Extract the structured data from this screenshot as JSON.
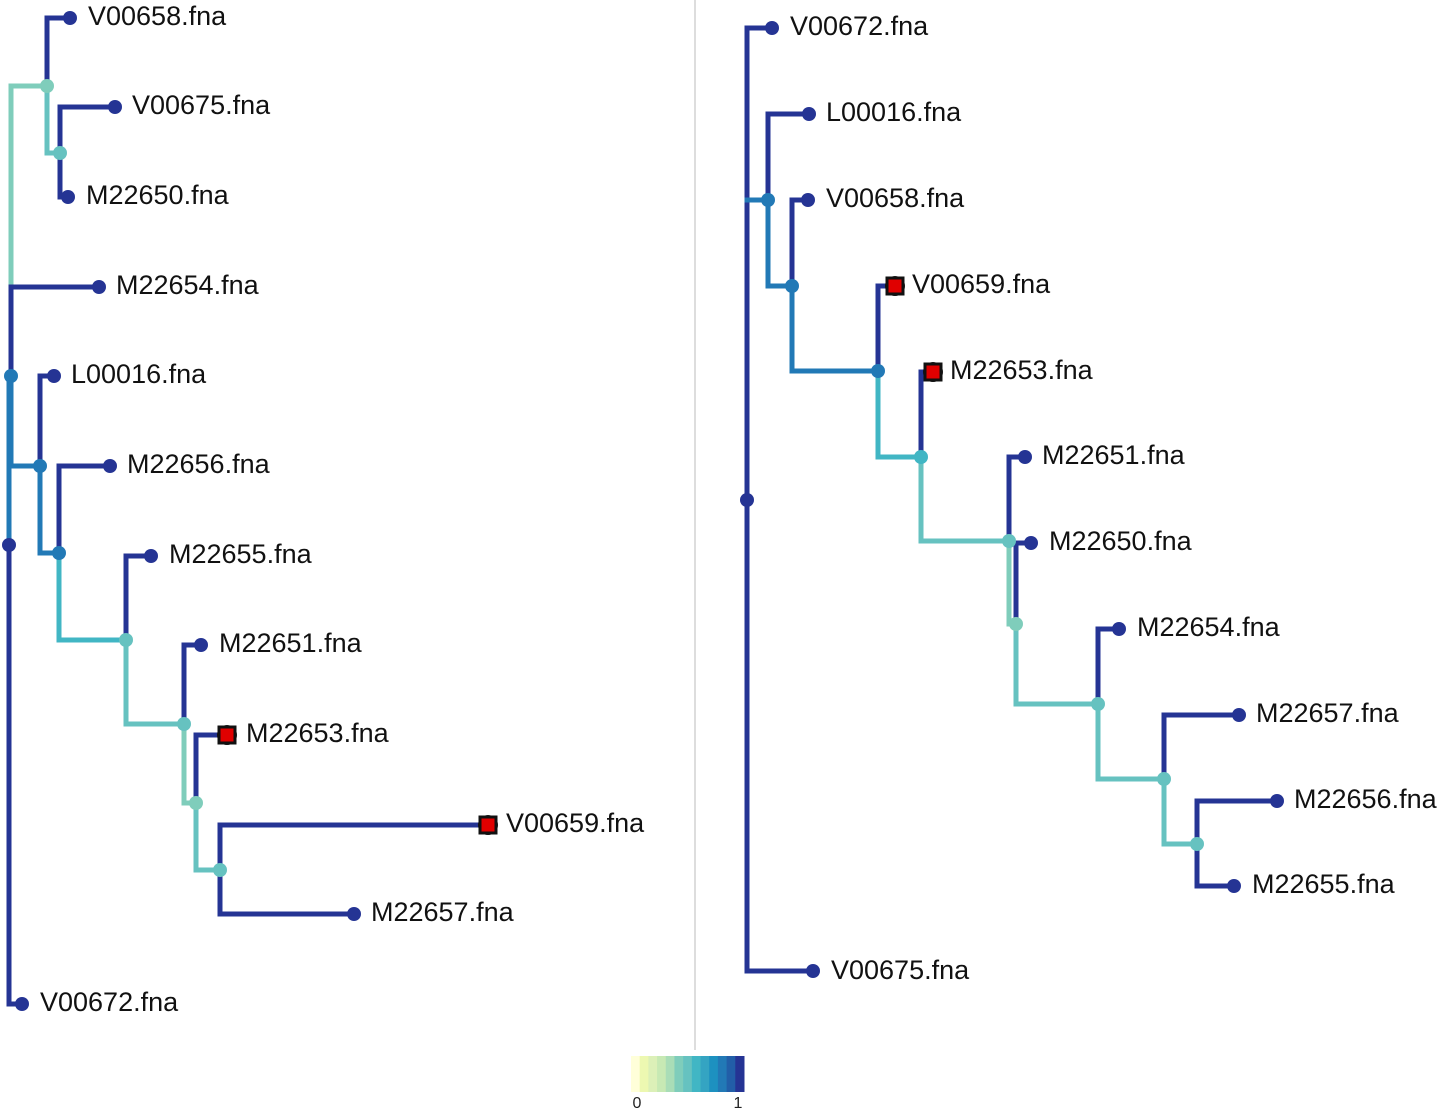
{
  "colors": {
    "divider": "#dddddd",
    "highlight_fill": "#e00000",
    "highlight_stroke": "#111111",
    "label": "#111111"
  },
  "color_scale": {
    "min_label": "0",
    "max_label": "1",
    "swatches": [
      "#ffffd9",
      "#edf8b1",
      "#dcf0b8",
      "#c7e9b4",
      "#a9ddb7",
      "#7fcdbb",
      "#66c2c0",
      "#41b6c4",
      "#34a4c2",
      "#1d91c0",
      "#2279b6",
      "#225ea8",
      "#253494"
    ]
  },
  "trees": [
    {
      "id": "left",
      "leaves": [
        {
          "label": "V00658.fna",
          "highlight": false
        },
        {
          "label": "V00675.fna",
          "highlight": false
        },
        {
          "label": "M22650.fna",
          "highlight": false
        },
        {
          "label": "M22654.fna",
          "highlight": false
        },
        {
          "label": "L00016.fna",
          "highlight": false
        },
        {
          "label": "M22656.fna",
          "highlight": false
        },
        {
          "label": "M22655.fna",
          "highlight": false
        },
        {
          "label": "M22651.fna",
          "highlight": false
        },
        {
          "label": "M22653.fna",
          "highlight": true
        },
        {
          "label": "V00659.fna",
          "highlight": true
        },
        {
          "label": "M22657.fna",
          "highlight": false
        },
        {
          "label": "V00672.fna",
          "highlight": false
        }
      ]
    },
    {
      "id": "right",
      "leaves": [
        {
          "label": "V00672.fna",
          "highlight": false
        },
        {
          "label": "L00016.fna",
          "highlight": false
        },
        {
          "label": "V00658.fna",
          "highlight": false
        },
        {
          "label": "V00659.fna",
          "highlight": true
        },
        {
          "label": "M22653.fna",
          "highlight": true
        },
        {
          "label": "M22651.fna",
          "highlight": false
        },
        {
          "label": "M22650.fna",
          "highlight": false
        },
        {
          "label": "M22654.fna",
          "highlight": false
        },
        {
          "label": "M22657.fna",
          "highlight": false
        },
        {
          "label": "M22656.fna",
          "highlight": false
        },
        {
          "label": "M22655.fna",
          "highlight": false
        },
        {
          "label": "V00675.fna",
          "highlight": false
        }
      ]
    }
  ]
}
